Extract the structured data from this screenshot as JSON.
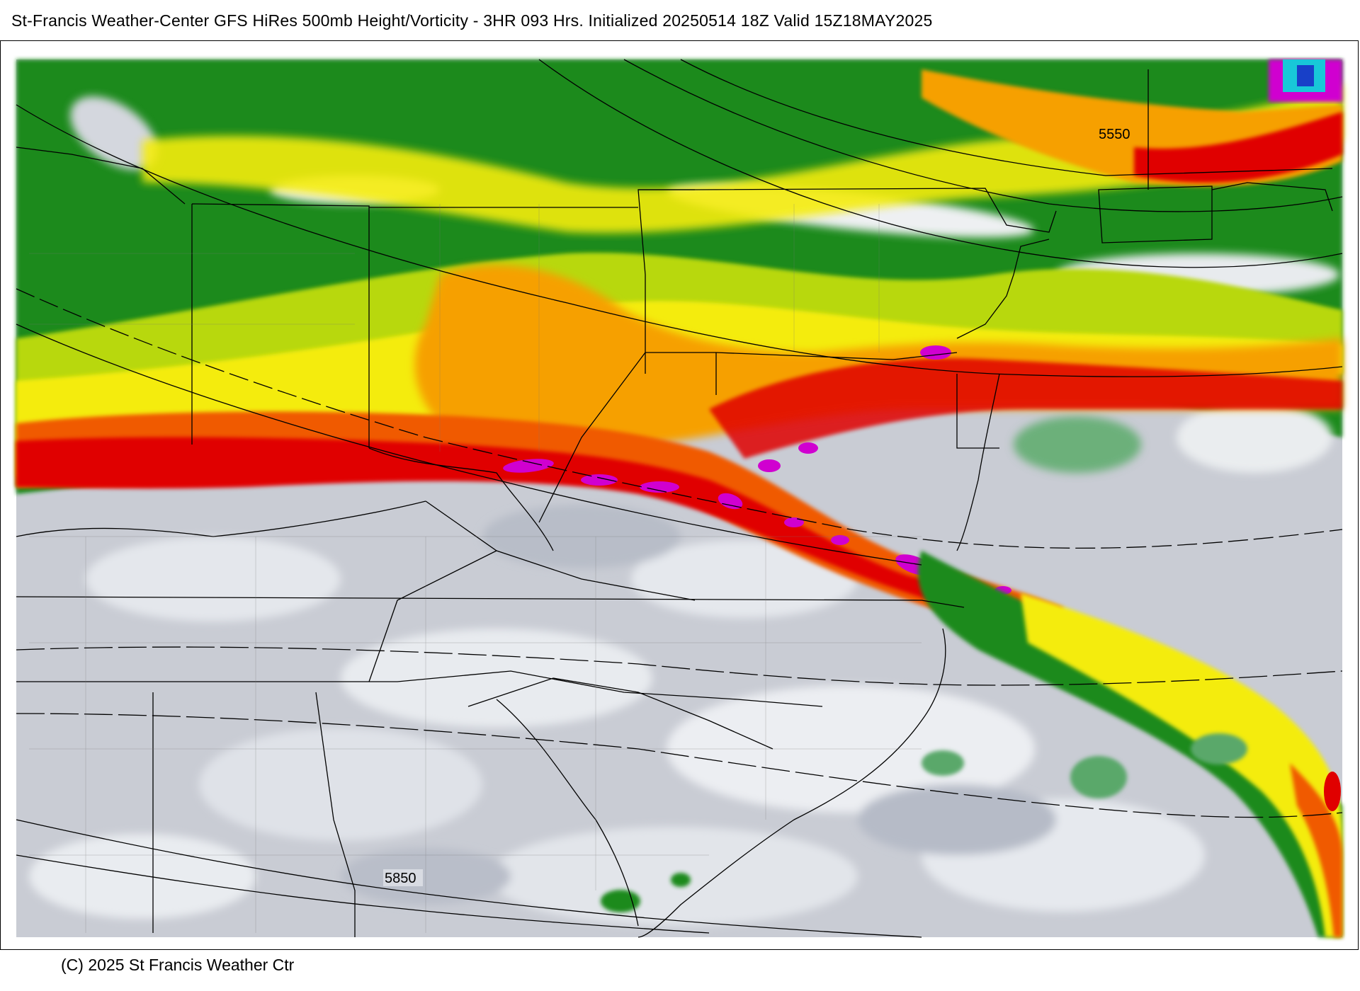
{
  "header": {
    "title": "St-Francis Weather-Center GFS HiRes 500mb Height/Vorticity - 3HR  093 Hrs.  Initialized 20250514 18Z Valid 15Z18MAY2025"
  },
  "map": {
    "contour_labels": [
      {
        "text": "5550"
      },
      {
        "text": "5850"
      }
    ],
    "colors": {
      "none": "#c9ccd4",
      "light": "#e6e9ee",
      "green_light": "#5aa86a",
      "green": "#1e8a1e",
      "yellow_green": "#b8d810",
      "yellow": "#f4ec10",
      "orange": "#f6a000",
      "orange_red": "#f05a00",
      "red": "#e00000",
      "magenta": "#d000d0",
      "cyan": "#18c8d8"
    }
  },
  "footer": {
    "copyright": "(C) 2025 St Francis Weather Ctr"
  }
}
